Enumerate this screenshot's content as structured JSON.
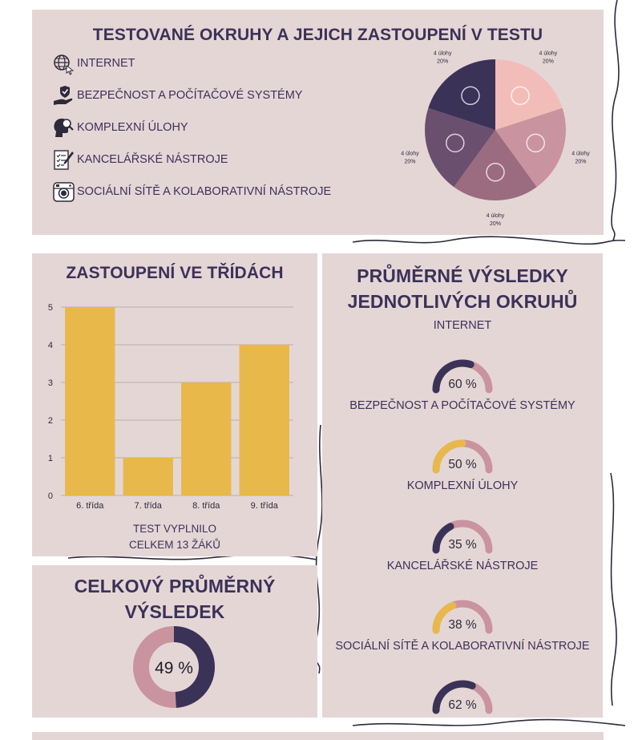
{
  "top": {
    "title": "TESTOVANÉ OKRUHY A JEJICH ZASTOUPENÍ V TESTU",
    "legend": [
      {
        "label": "INTERNET",
        "icon": "globe-cursor-icon"
      },
      {
        "label": "BEZPEČNOST A POČÍTAČOVÉ SYSTÉMY",
        "icon": "hand-shield-icon"
      },
      {
        "label": "KOMPLEXNÍ ÚLOHY",
        "icon": "head-magnifier-icon"
      },
      {
        "label": "KANCELÁŘSKÉ NÁSTROJE",
        "icon": "checklist-pen-icon"
      },
      {
        "label": "SOCIÁLNÍ SÍTĚ A KOLABORATIVNÍ NÁSTROJE",
        "icon": "camera-icon"
      }
    ]
  },
  "classes": {
    "title": "ZASTOUPENÍ VE TŘÍDÁCH",
    "note_line1": "TEST VYPLNILO",
    "note_line2": "CELKEM 13 ŽÁKŮ"
  },
  "overall": {
    "title_line1": "CELKOVÝ PRŮMĚRNÝ",
    "title_line2": "VÝSLEDEK"
  },
  "results": {
    "title_line1": "PRŮMĚRNÉ VÝSLEDKY",
    "title_line2": "JEDNOTLIVÝCH OKRUHŮ"
  },
  "colors": {
    "panel": "#e5d6d6",
    "navy": "#3b3258",
    "mustard": "#e8b84a",
    "rose": "#c9949f",
    "mauve": "#9b6b80",
    "plum": "#6b4f6e",
    "pink": "#f2bdb8"
  },
  "chart_data": [
    {
      "type": "pie",
      "title": "",
      "slices": [
        {
          "name": "KANCELÁŘSKÉ NÁSTROJE",
          "label": "4 úlohy",
          "percent_label": "20%",
          "value": 20,
          "color": "#f2bdb8",
          "icon": "checklist-pen-icon"
        },
        {
          "name": "KOMPLEXNÍ ÚLOHY",
          "label": "4 úlohy",
          "percent_label": "20%",
          "value": 20,
          "color": "#c9949f",
          "icon": "head-magnifier-icon"
        },
        {
          "name": "SOCIÁLNÍ SÍTĚ A KOLABORATIVNÍ NÁSTROJE",
          "label": "4 úlohy",
          "percent_label": "20%",
          "value": 20,
          "color": "#9b6b80",
          "icon": "camera-icon"
        },
        {
          "name": "INTERNET",
          "label": "4 úlohy",
          "percent_label": "20%",
          "value": 20,
          "color": "#6b4f6e",
          "icon": "globe-cursor-icon"
        },
        {
          "name": "BEZPEČNOST A POČÍTAČOVÉ SYSTÉMY",
          "label": "4 úlohy",
          "percent_label": "20%",
          "value": 20,
          "color": "#3b3258",
          "icon": "hand-shield-icon"
        }
      ]
    },
    {
      "type": "bar",
      "title": "ZASTOUPENÍ VE TŘÍDÁCH",
      "categories": [
        "6. třída",
        "7. třída",
        "8. třída",
        "9. třída"
      ],
      "values": [
        5,
        1,
        3,
        4
      ],
      "ylim": [
        0,
        5
      ],
      "yticks": [
        "0",
        "1",
        "2",
        "3",
        "4",
        "5"
      ],
      "grid": true,
      "bar_color": "#e8b84a"
    },
    {
      "type": "donut",
      "title": "CELKOVÝ PRŮMĚRNÝ VÝSLEDEK",
      "value": 49,
      "label": "49 %",
      "fill_color": "#3b3258",
      "track_color": "#c9949f"
    },
    {
      "type": "gauge",
      "title": "PRŮMĚRNÉ VÝSLEDKY JEDNOTLIVÝCH OKRUHŮ",
      "items": [
        {
          "name": "INTERNET",
          "value": 60,
          "label": "60 %",
          "fill_color": "#3b3258"
        },
        {
          "name": "BEZPEČNOST A POČÍTAČOVÉ SYSTÉMY",
          "value": 50,
          "label": "50 %",
          "fill_color": "#e8b84a"
        },
        {
          "name": "KOMPLEXNÍ ÚLOHY",
          "value": 35,
          "label": "35 %",
          "fill_color": "#3b3258"
        },
        {
          "name": "KANCELÁŘSKÉ NÁSTROJE",
          "value": 38,
          "label": "38 %",
          "fill_color": "#e8b84a"
        },
        {
          "name": "SOCIÁLNÍ SÍTĚ A KOLABORATIVNÍ NÁSTROJE",
          "value": 62,
          "label": "62 %",
          "fill_color": "#3b3258"
        }
      ],
      "track_color": "#c9949f"
    }
  ]
}
